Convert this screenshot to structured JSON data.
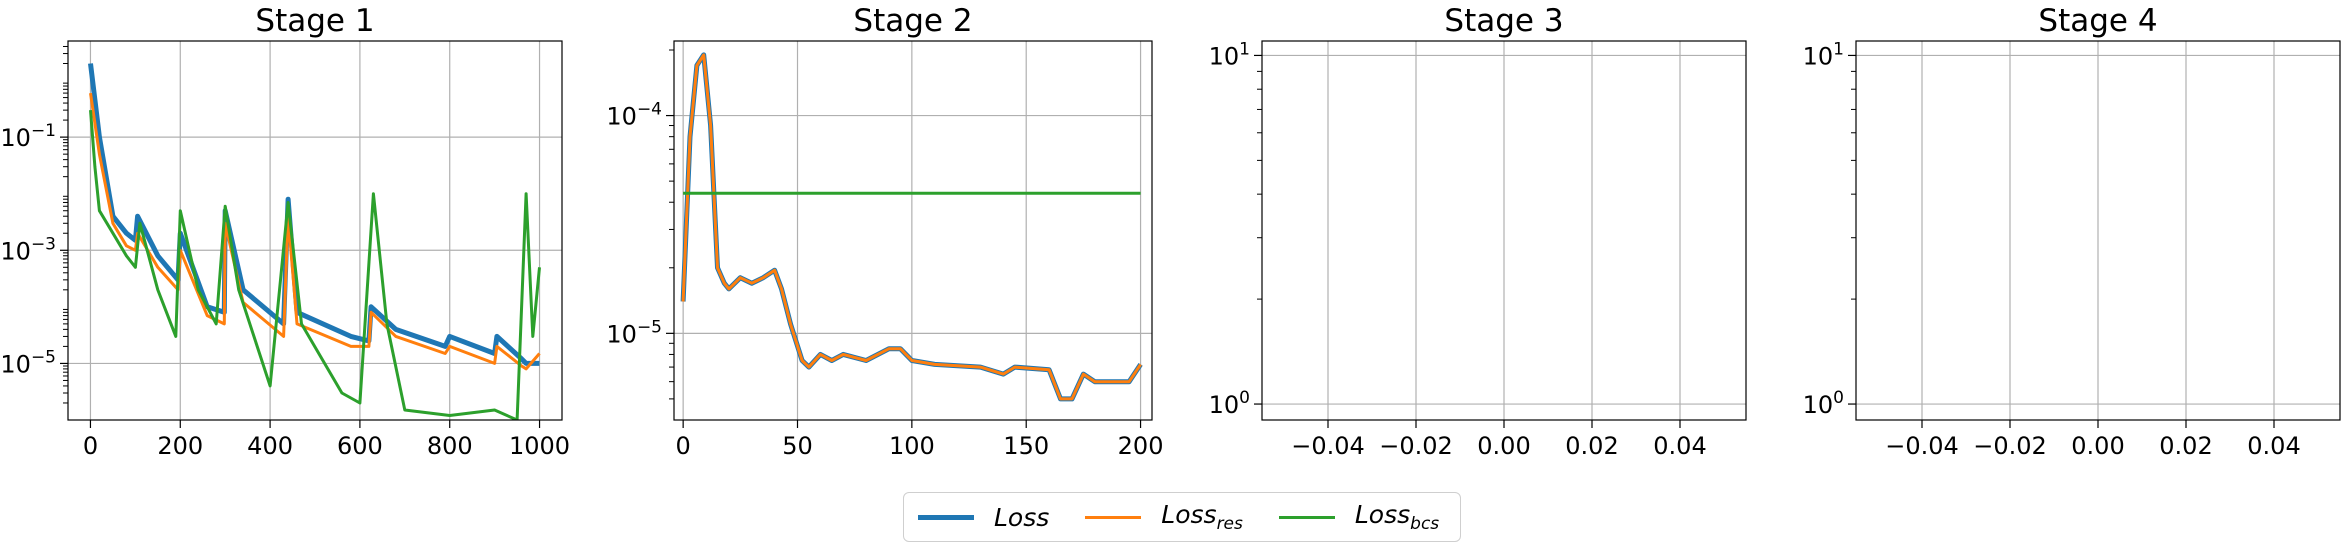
{
  "colors": {
    "loss": "#1f77b4",
    "loss_res": "#ff7f0e",
    "loss_bcs": "#2ca02c",
    "grid": "#b0b0b0"
  },
  "legend": {
    "placement": "bottom-center",
    "items": [
      {
        "key": "loss",
        "main": "Loss",
        "sub": ""
      },
      {
        "key": "loss_res",
        "main": "Loss",
        "sub": "res"
      },
      {
        "key": "loss_bcs",
        "main": "Loss",
        "sub": "bcs"
      }
    ]
  },
  "chart_data": [
    {
      "type": "line",
      "title": "Stage 1",
      "yscale": "log",
      "xlim": [
        -50,
        1050
      ],
      "ylim": [
        1e-06,
        5
      ],
      "grid": true,
      "xticks": [
        "0",
        "200",
        "400",
        "600",
        "800",
        "1000"
      ],
      "xtick_values": [
        0,
        200,
        400,
        600,
        800,
        1000
      ],
      "yticks": [
        "10^-1",
        "10^-3",
        "10^-5"
      ],
      "ytick_values": [
        0.1,
        0.001,
        1e-05
      ],
      "series": [
        {
          "key": "loss",
          "name": "Loss",
          "x": [
            0,
            20,
            50,
            80,
            100,
            105,
            150,
            195,
            200,
            260,
            298,
            300,
            340,
            430,
            440,
            460,
            580,
            620,
            625,
            680,
            790,
            800,
            900,
            905,
            960,
            970,
            1000
          ],
          "y": [
            2.0,
            0.1,
            0.004,
            0.002,
            0.0015,
            0.004,
            0.0008,
            0.0003,
            0.002,
            0.0001,
            8e-05,
            0.005,
            0.0002,
            5e-05,
            0.008,
            8e-05,
            3e-05,
            2.5e-05,
            0.0001,
            4e-05,
            2e-05,
            3e-05,
            1.5e-05,
            3e-05,
            1.2e-05,
            1e-05,
            1e-05
          ]
        },
        {
          "key": "loss_res",
          "name": "Loss_res",
          "x": [
            0,
            20,
            50,
            80,
            100,
            105,
            150,
            195,
            200,
            260,
            298,
            300,
            340,
            430,
            440,
            460,
            580,
            620,
            625,
            680,
            790,
            800,
            900,
            905,
            960,
            970,
            1000
          ],
          "y": [
            0.6,
            0.05,
            0.003,
            0.0012,
            0.001,
            0.002,
            0.0005,
            0.0002,
            0.001,
            7e-05,
            5e-05,
            0.003,
            0.00012,
            3e-05,
            0.004,
            5e-05,
            2e-05,
            2e-05,
            8e-05,
            3e-05,
            1.5e-05,
            2e-05,
            1e-05,
            2e-05,
            9e-06,
            8e-06,
            1.5e-05
          ]
        },
        {
          "key": "loss_bcs",
          "name": "Loss_bcs",
          "x": [
            0,
            10,
            20,
            50,
            80,
            100,
            110,
            150,
            190,
            200,
            240,
            280,
            300,
            330,
            400,
            440,
            470,
            560,
            600,
            630,
            660,
            700,
            800,
            900,
            950,
            970,
            985,
            1000
          ],
          "y": [
            0.3,
            0.03,
            0.005,
            0.002,
            0.0008,
            0.0005,
            0.003,
            0.0002,
            3e-05,
            0.005,
            0.0002,
            5e-05,
            0.006,
            0.0002,
            4e-06,
            0.007,
            5e-05,
            3e-06,
            2e-06,
            0.01,
            5e-05,
            1.5e-06,
            1.2e-06,
            1.5e-06,
            1e-06,
            0.01,
            3e-05,
            0.0005
          ]
        }
      ]
    },
    {
      "type": "line",
      "title": "Stage 2",
      "yscale": "log",
      "xlim": [
        -4,
        205
      ],
      "ylim": [
        4e-06,
        0.00022
      ],
      "grid": true,
      "xticks": [
        "0",
        "50",
        "100",
        "150",
        "200"
      ],
      "xtick_values": [
        0,
        50,
        100,
        150,
        200
      ],
      "yticks": [
        "10^-4",
        "10^-5"
      ],
      "ytick_values": [
        0.0001,
        1e-05
      ],
      "series": [
        {
          "key": "loss",
          "name": "Loss",
          "x": [
            0,
            3,
            6,
            9,
            12,
            15,
            18,
            20,
            25,
            30,
            35,
            40,
            43,
            47,
            52,
            55,
            60,
            65,
            70,
            80,
            90,
            95,
            100,
            110,
            130,
            140,
            145,
            160,
            165,
            170,
            175,
            180,
            195,
            200
          ],
          "y": [
            1.4e-05,
            8e-05,
            0.00017,
            0.00019,
            9e-05,
            2e-05,
            1.7e-05,
            1.6e-05,
            1.8e-05,
            1.7e-05,
            1.8e-05,
            1.95e-05,
            1.6e-05,
            1.1e-05,
            7.5e-06,
            7e-06,
            8e-06,
            7.5e-06,
            8e-06,
            7.5e-06,
            8.5e-06,
            8.5e-06,
            7.5e-06,
            7.2e-06,
            7e-06,
            6.5e-06,
            7e-06,
            6.8e-06,
            5e-06,
            5e-06,
            6.5e-06,
            6e-06,
            6e-06,
            7.2e-06
          ]
        },
        {
          "key": "loss_res",
          "name": "Loss_res",
          "x": [
            0,
            3,
            6,
            9,
            12,
            15,
            18,
            20,
            25,
            30,
            35,
            40,
            43,
            47,
            52,
            55,
            60,
            65,
            70,
            80,
            90,
            95,
            100,
            110,
            130,
            140,
            145,
            160,
            165,
            170,
            175,
            180,
            195,
            200
          ],
          "y": [
            1.4e-05,
            8e-05,
            0.00017,
            0.00019,
            9e-05,
            2e-05,
            1.7e-05,
            1.6e-05,
            1.8e-05,
            1.7e-05,
            1.8e-05,
            1.95e-05,
            1.6e-05,
            1.1e-05,
            7.5e-06,
            7e-06,
            8e-06,
            7.5e-06,
            8e-06,
            7.5e-06,
            8.5e-06,
            8.5e-06,
            7.5e-06,
            7.2e-06,
            7e-06,
            6.5e-06,
            7e-06,
            6.8e-06,
            5e-06,
            5e-06,
            6.5e-06,
            6e-06,
            6e-06,
            7.2e-06
          ]
        },
        {
          "key": "loss_bcs",
          "name": "Loss_bcs",
          "x": [
            0,
            200
          ],
          "y": [
            4.4e-05,
            4.4e-05
          ]
        }
      ]
    },
    {
      "type": "line",
      "title": "Stage 3",
      "yscale": "log",
      "xlim": [
        -0.055,
        0.055
      ],
      "ylim": [
        0.9,
        11
      ],
      "grid": true,
      "xticks": [
        "−0.04",
        "−0.02",
        "0.00",
        "0.02",
        "0.04"
      ],
      "xtick_values": [
        -0.04,
        -0.02,
        0,
        0.02,
        0.04
      ],
      "yticks": [
        "10^1",
        "10^0"
      ],
      "ytick_values": [
        10,
        1
      ],
      "series": []
    },
    {
      "type": "line",
      "title": "Stage 4",
      "yscale": "log",
      "xlim": [
        -0.055,
        0.055
      ],
      "ylim": [
        0.9,
        11
      ],
      "grid": true,
      "xticks": [
        "−0.04",
        "−0.02",
        "0.00",
        "0.02",
        "0.04"
      ],
      "xtick_values": [
        -0.04,
        -0.02,
        0,
        0.02,
        0.04
      ],
      "yticks": [
        "10^1",
        "10^0"
      ],
      "ytick_values": [
        10,
        1
      ],
      "series": []
    }
  ]
}
